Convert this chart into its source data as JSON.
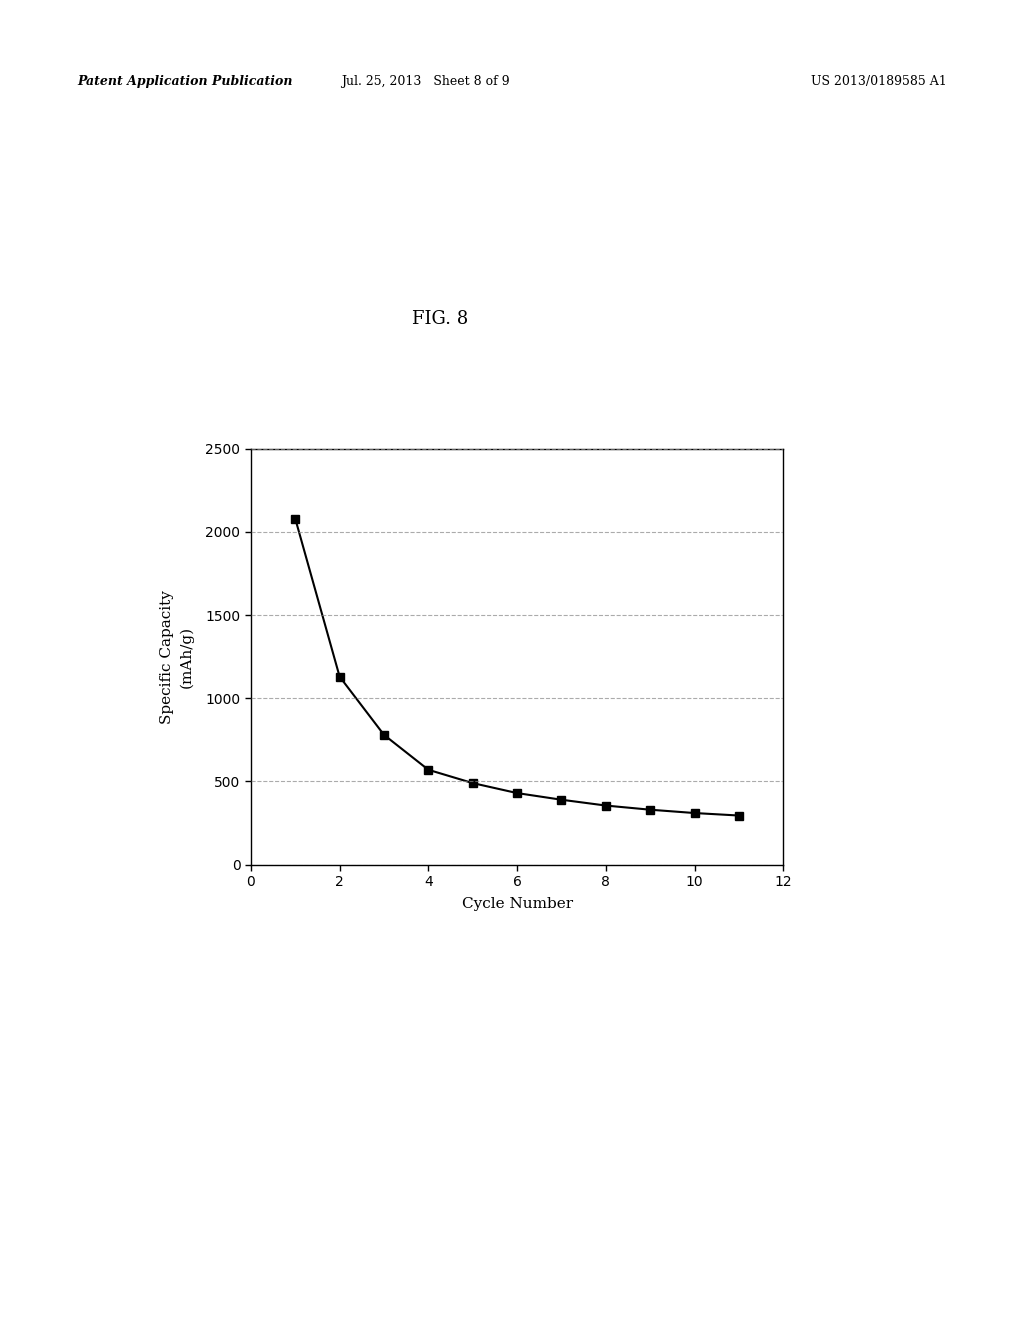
{
  "title": "FIG. 8",
  "xlabel": "Cycle Number",
  "ylabel": "Specific Capacity\n(mAh/g)",
  "x_data": [
    1,
    2,
    3,
    4,
    5,
    6,
    7,
    8,
    9,
    10,
    11
  ],
  "y_data": [
    2080,
    1130,
    780,
    570,
    490,
    430,
    390,
    355,
    330,
    310,
    295
  ],
  "xlim": [
    0,
    12
  ],
  "ylim": [
    0,
    2500
  ],
  "xticks": [
    0,
    2,
    4,
    6,
    8,
    10,
    12
  ],
  "yticks": [
    0,
    500,
    1000,
    1500,
    2000,
    2500
  ],
  "grid_color": "#888888",
  "line_color": "#000000",
  "marker_color": "#000000",
  "background_color": "#ffffff",
  "header_left": "Patent Application Publication",
  "header_center": "Jul. 25, 2013   Sheet 8 of 9",
  "header_right": "US 2013/0189585 A1",
  "fig_label": "FIG. 8",
  "fig_width": 10.24,
  "fig_height": 13.2
}
